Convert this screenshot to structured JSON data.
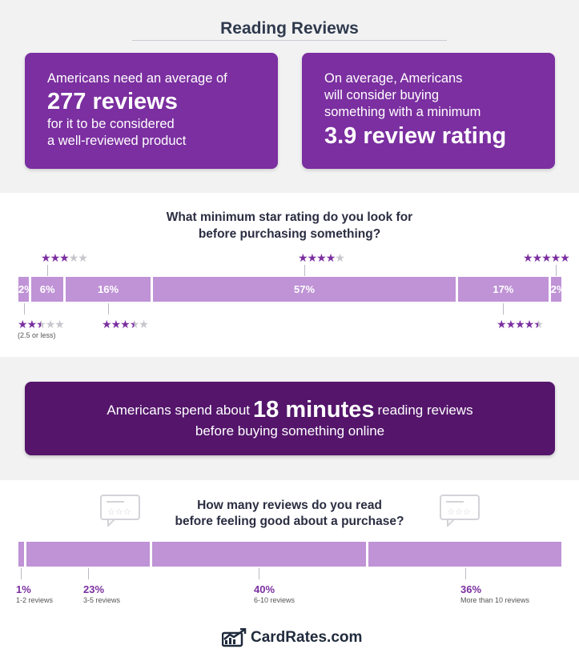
{
  "header": {
    "title": "Reading Reviews"
  },
  "card_left": {
    "line1": "Americans need an average of",
    "big": "277 reviews",
    "line2": "for it to be considered",
    "line3": "a well-reviewed product"
  },
  "card_right": {
    "line1": "On average, Americans",
    "line2": "will consider buying",
    "line3": "something with a minimum",
    "big": "3.9 review rating"
  },
  "star_chart": {
    "title_line1": "What minimum star rating do you look for",
    "title_line2": "before purchasing something?",
    "segments": [
      {
        "label": "2%",
        "value": 2
      },
      {
        "label": "6%",
        "value": 6
      },
      {
        "label": "16%",
        "value": 16
      },
      {
        "label": "57%",
        "value": 57
      },
      {
        "label": "17%",
        "value": 17
      },
      {
        "label": "2%",
        "value": 2
      }
    ],
    "ratings": [
      {
        "stars": 2.5,
        "note": "(2.5 or less)"
      },
      {
        "stars": 3
      },
      {
        "stars": 3.5
      },
      {
        "stars": 4
      },
      {
        "stars": 4.5
      },
      {
        "stars": 5
      }
    ]
  },
  "banner": {
    "pre": "Americans spend about",
    "big": "18 minutes",
    "post": "reading reviews",
    "line2": "before buying something online"
  },
  "reviews_chart": {
    "title_line1": "How many reviews do you read",
    "title_line2": "before feeling good about a purchase?",
    "segments": [
      {
        "label": "1%",
        "value": 1,
        "sub": "1-2 reviews"
      },
      {
        "label": "23%",
        "value": 23,
        "sub": "3-5 reviews"
      },
      {
        "label": "40%",
        "value": 40,
        "sub": "6-10 reviews"
      },
      {
        "label": "36%",
        "value": 36,
        "sub": "More than 10 reviews"
      }
    ]
  },
  "footer": {
    "logo_text": "CardRates.com"
  },
  "colors": {
    "purple": "#7b2fa0",
    "dark_purple": "#54156b",
    "bar": "#bf93d6",
    "bg_gray": "#f2f2f3"
  }
}
